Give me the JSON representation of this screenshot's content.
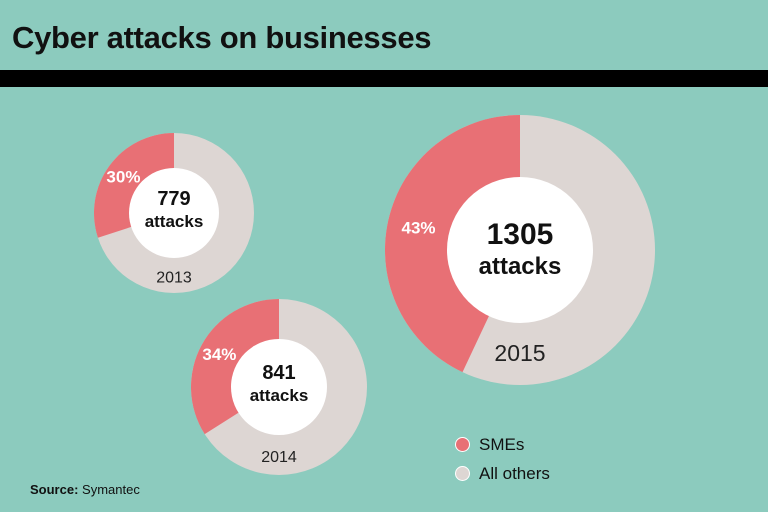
{
  "title": "Cyber attacks on businesses",
  "source": {
    "label": "Source:",
    "name": "Symantec"
  },
  "colors": {
    "background": "#8ccbbe",
    "sme": "#e87075",
    "others": "#ddd6d3",
    "center": "#ffffff"
  },
  "legend": [
    {
      "label": "SMEs",
      "color": "#e87075"
    },
    {
      "label": "All others",
      "color": "#ddd6d3"
    }
  ],
  "chart_data": {
    "type": "pie",
    "title": "Cyber attacks on businesses",
    "series_names": [
      "SMEs",
      "All others"
    ],
    "charts": [
      {
        "year": "2013",
        "total": 779,
        "total_label": "779",
        "unit": "attacks",
        "sme_percent": 30,
        "sme_label": "30%"
      },
      {
        "year": "2014",
        "total": 841,
        "total_label": "841",
        "unit": "attacks",
        "sme_percent": 34,
        "sme_label": "34%"
      },
      {
        "year": "2015",
        "total": 1305,
        "total_label": "1305",
        "unit": "attacks",
        "sme_percent": 43,
        "sme_label": "43%"
      }
    ]
  }
}
